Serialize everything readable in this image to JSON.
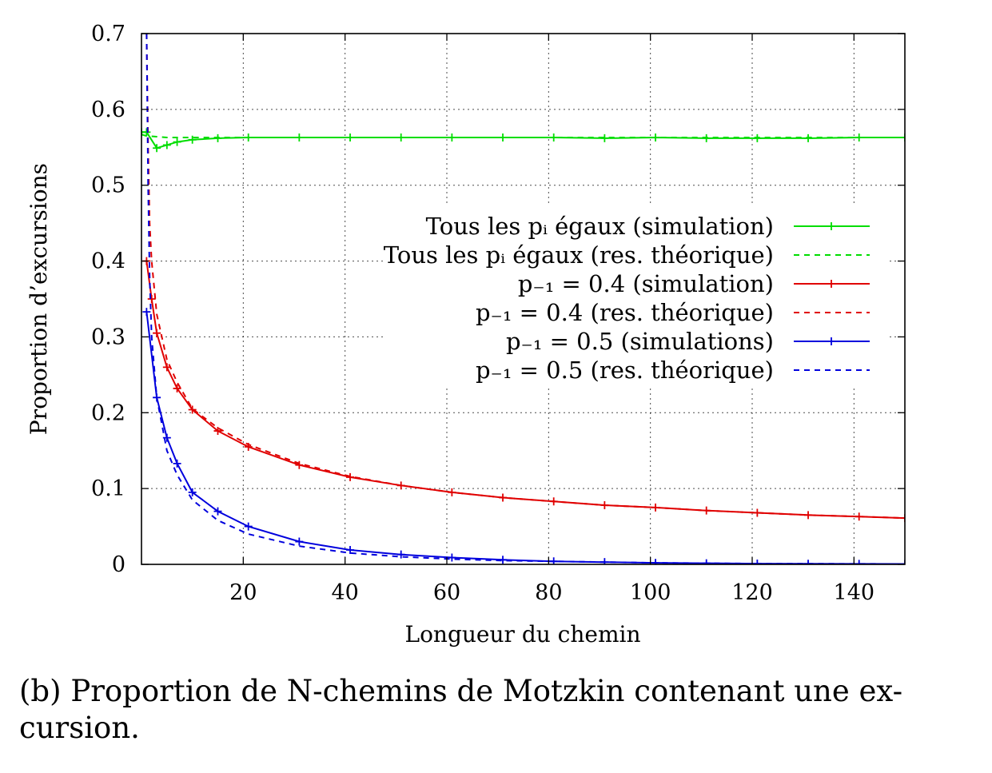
{
  "caption": "(b) Proportion de N-chemins de Motzkin contenant une ex-cursion.",
  "chart_data": {
    "type": "line",
    "xlabel": "Longueur du chemin",
    "ylabel": "Proportion d’excursions",
    "xlim": [
      0,
      150
    ],
    "ylim": [
      0,
      0.7
    ],
    "xticks": [
      20,
      40,
      60,
      80,
      100,
      120,
      140
    ],
    "yticks": [
      0,
      0.1,
      0.2,
      0.3,
      0.4,
      0.5,
      0.6,
      0.7
    ],
    "xtick_labels": [
      "20",
      "40",
      "60",
      "80",
      "100",
      "120",
      "140"
    ],
    "ytick_labels": [
      "0",
      "0.1",
      "0.2",
      "0.3",
      "0.4",
      "0.5",
      "0.6",
      "0.7"
    ],
    "grid": true,
    "legend_position": "right",
    "series": [
      {
        "name": "Tous les pᵢ égaux (simulation)",
        "color": "#00dd00",
        "style": "solid",
        "markers": true,
        "x": [
          0,
          1,
          3,
          5,
          7,
          10,
          15,
          21,
          31,
          41,
          51,
          61,
          71,
          81,
          91,
          101,
          111,
          121,
          131,
          141,
          150
        ],
        "y": [
          0.57,
          0.57,
          0.549,
          0.553,
          0.557,
          0.56,
          0.562,
          0.563,
          0.563,
          0.563,
          0.563,
          0.563,
          0.563,
          0.563,
          0.562,
          0.563,
          0.562,
          0.562,
          0.562,
          0.563,
          0.563
        ]
      },
      {
        "name": "Tous les pᵢ égaux (res. théorique)",
        "color": "#00dd00",
        "style": "dashed",
        "markers": false,
        "x": [
          0,
          1,
          3,
          5,
          10,
          20,
          40,
          60,
          80,
          100,
          120,
          140,
          150
        ],
        "y": [
          0.567,
          0.565,
          0.564,
          0.563,
          0.563,
          0.563,
          0.563,
          0.563,
          0.563,
          0.563,
          0.563,
          0.563,
          0.563
        ]
      },
      {
        "name": "p₋₁ = 0.4 (simulation)",
        "color": "#e00000",
        "style": "solid",
        "markers": true,
        "x": [
          1,
          2,
          3,
          5,
          7,
          10,
          15,
          21,
          31,
          41,
          51,
          61,
          71,
          81,
          91,
          101,
          111,
          121,
          131,
          141,
          150
        ],
        "y": [
          0.4,
          0.35,
          0.305,
          0.26,
          0.232,
          0.204,
          0.176,
          0.155,
          0.131,
          0.115,
          0.104,
          0.095,
          0.088,
          0.083,
          0.078,
          0.075,
          0.071,
          0.068,
          0.065,
          0.063,
          0.061
        ]
      },
      {
        "name": "p₋₁ = 0.4 (res. théorique)",
        "color": "#e00000",
        "style": "dashed",
        "markers": false,
        "x": [
          1,
          1.3,
          1.6,
          2,
          3,
          5,
          7,
          10,
          15,
          21,
          31,
          41,
          51,
          61,
          71,
          81,
          91,
          101,
          111,
          121,
          131,
          141,
          150
        ],
        "y": [
          0.7,
          0.55,
          0.45,
          0.4,
          0.33,
          0.27,
          0.24,
          0.205,
          0.18,
          0.158,
          0.133,
          0.116,
          0.104,
          0.095,
          0.088,
          0.083,
          0.078,
          0.075,
          0.071,
          0.068,
          0.065,
          0.063,
          0.061
        ]
      },
      {
        "name": "p₋₁ = 0.5 (simulations)",
        "color": "#0000dd",
        "style": "solid",
        "markers": true,
        "x": [
          1,
          3,
          5,
          7,
          10,
          15,
          21,
          31,
          41,
          51,
          61,
          71,
          81,
          91,
          101,
          111,
          121,
          131,
          141,
          150
        ],
        "y": [
          0.333,
          0.22,
          0.167,
          0.133,
          0.095,
          0.07,
          0.05,
          0.03,
          0.019,
          0.013,
          0.009,
          0.006,
          0.004,
          0.003,
          0.002,
          0.0015,
          0.001,
          0.0008,
          0.0006,
          0.0005
        ]
      },
      {
        "name": "p₋₁ = 0.5 (res. théorique)",
        "color": "#0000dd",
        "style": "dashed",
        "markers": false,
        "x": [
          1,
          1.3,
          1.6,
          2,
          3,
          5,
          7,
          10,
          15,
          21,
          31,
          41,
          51,
          61,
          71,
          81,
          91,
          101,
          111,
          121,
          131,
          141,
          150
        ],
        "y": [
          0.7,
          0.5,
          0.38,
          0.3,
          0.22,
          0.15,
          0.118,
          0.085,
          0.058,
          0.04,
          0.024,
          0.015,
          0.01,
          0.007,
          0.005,
          0.004,
          0.003,
          0.002,
          0.0015,
          0.001,
          0.0008,
          0.0006,
          0.0005
        ]
      }
    ]
  }
}
